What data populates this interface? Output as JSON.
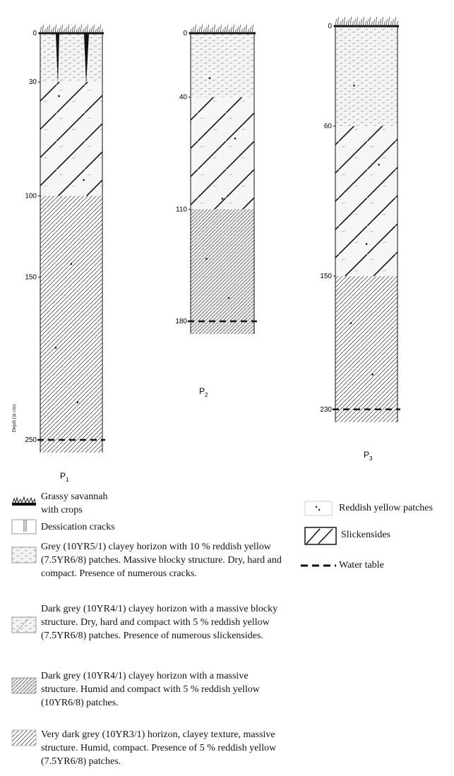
{
  "profiles": [
    {
      "name": "P",
      "sub": "1",
      "depths": [
        0,
        30,
        100,
        150,
        250
      ]
    },
    {
      "name": "P",
      "sub": "2",
      "depths": [
        0,
        40,
        110,
        180
      ]
    },
    {
      "name": "P",
      "sub": "3",
      "depths": [
        0,
        60,
        150,
        230
      ]
    }
  ],
  "axis_label": "Depth (in cm)",
  "legend": {
    "left": [
      "Grassy savannah with crops",
      "Dessication cracks",
      "Grey (10YR5/1) clayey horizon with 10 % reddish yellow (7.5YR6/8) patches. Massive blocky structure. Dry, hard and compact. Presence of numerous cracks.",
      "Dark grey (10YR4/1) clayey horizon with a massive blocky structure. Dry, hard and compact with 5 % reddish yellow (7.5YR6/8) patches. Presence of numerous slickensides.",
      "Dark grey (10YR4/1) clayey horizon with a massive structure. Humid and compact with 5 % reddish yellow (10YR6/8) patches.",
      "Very dark grey (10YR3/1) horizon, clayey texture, massive structure. Humid, compact. Presence of 5 % reddish yellow (7.5YR6/8) patches."
    ],
    "right": [
      "Reddish yellow patches",
      "Slickensides",
      "Water table"
    ]
  }
}
